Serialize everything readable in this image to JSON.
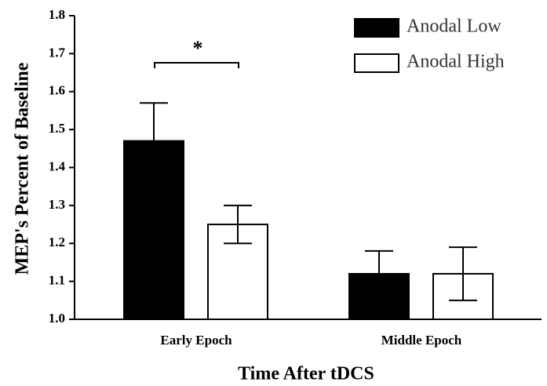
{
  "chart_data": {
    "type": "bar",
    "x_label": "Time After tDCS",
    "y_label": "MEP's Percent of Baseline",
    "categories": [
      "Early Epoch",
      "Middle Epoch"
    ],
    "series": [
      {
        "name": "Anodal Low",
        "color": "#000000",
        "values": [
          1.47,
          1.12
        ],
        "errors": [
          0.1,
          0.06
        ]
      },
      {
        "name": "Anodal High",
        "color": "#ffffff",
        "values": [
          1.25,
          1.12
        ],
        "errors": [
          0.05,
          0.07
        ]
      }
    ],
    "annotation": "*",
    "ylim": [
      1.0,
      1.8
    ],
    "yticks": [
      {
        "value": 1.0,
        "label": "1.0"
      },
      1.1,
      1.2,
      1.3,
      1.4,
      1.5,
      1.6,
      1.7,
      1.8
    ],
    "legend": "upper right"
  }
}
